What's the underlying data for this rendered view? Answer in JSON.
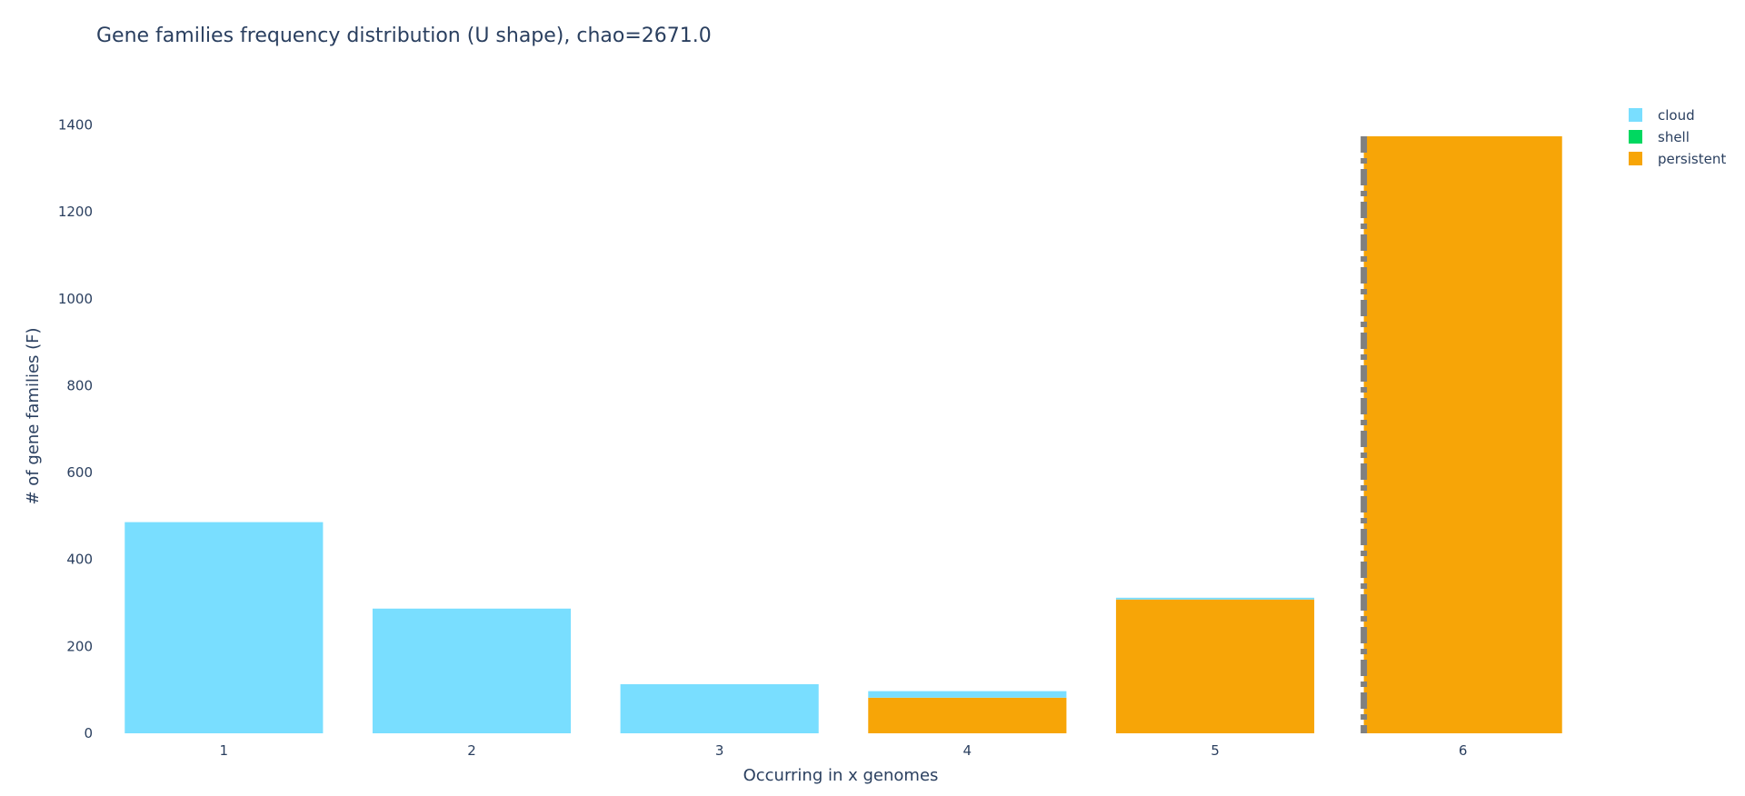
{
  "chart_data": {
    "type": "bar",
    "stacked": true,
    "title": "Gene families frequency distribution (U shape), chao=2671.0",
    "xlabel": "Occurring in x genomes",
    "ylabel": "# of gene families (F)",
    "categories": [
      "1",
      "2",
      "3",
      "4",
      "5",
      "6"
    ],
    "ylim": [
      0,
      1420
    ],
    "yticks": [
      0,
      200,
      400,
      600,
      800,
      1000,
      1200,
      1400
    ],
    "grid": false,
    "legend_position": "top-right",
    "series": [
      {
        "name": "persistent",
        "color": "#F7A507",
        "values": [
          0,
          0,
          0,
          82,
          308,
          1374
        ]
      },
      {
        "name": "shell",
        "color": "#00D860",
        "values": [
          0,
          0,
          0,
          0,
          0,
          0
        ]
      },
      {
        "name": "cloud",
        "color": "#79DEFF",
        "values": [
          486,
          287,
          113,
          15,
          4,
          0
        ]
      }
    ],
    "legend_order": [
      "cloud",
      "shell",
      "persistent"
    ],
    "threshold_line": {
      "x": 5.6,
      "style": "dashdot",
      "color": "#808080"
    }
  }
}
